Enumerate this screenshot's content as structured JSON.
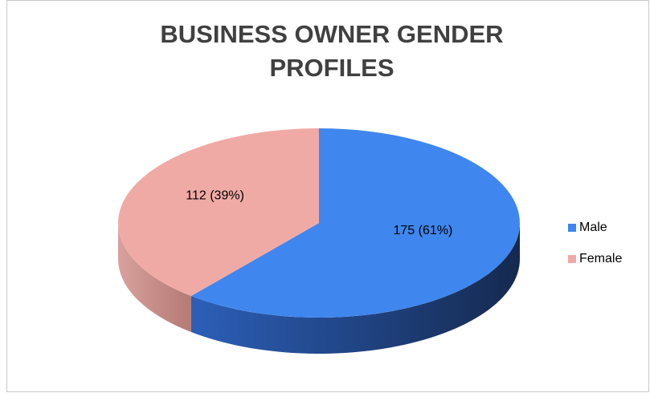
{
  "chart_data": {
    "type": "pie",
    "title": "BUSINESS OWNER GENDER PROFILES",
    "categories": [
      "Male",
      "Female"
    ],
    "values": [
      175,
      112
    ],
    "value_labels": [
      "175 (61%)",
      "112 (39%)"
    ],
    "colors": [
      "#3f86ee",
      "#f0aaa5"
    ],
    "legend": "right"
  }
}
